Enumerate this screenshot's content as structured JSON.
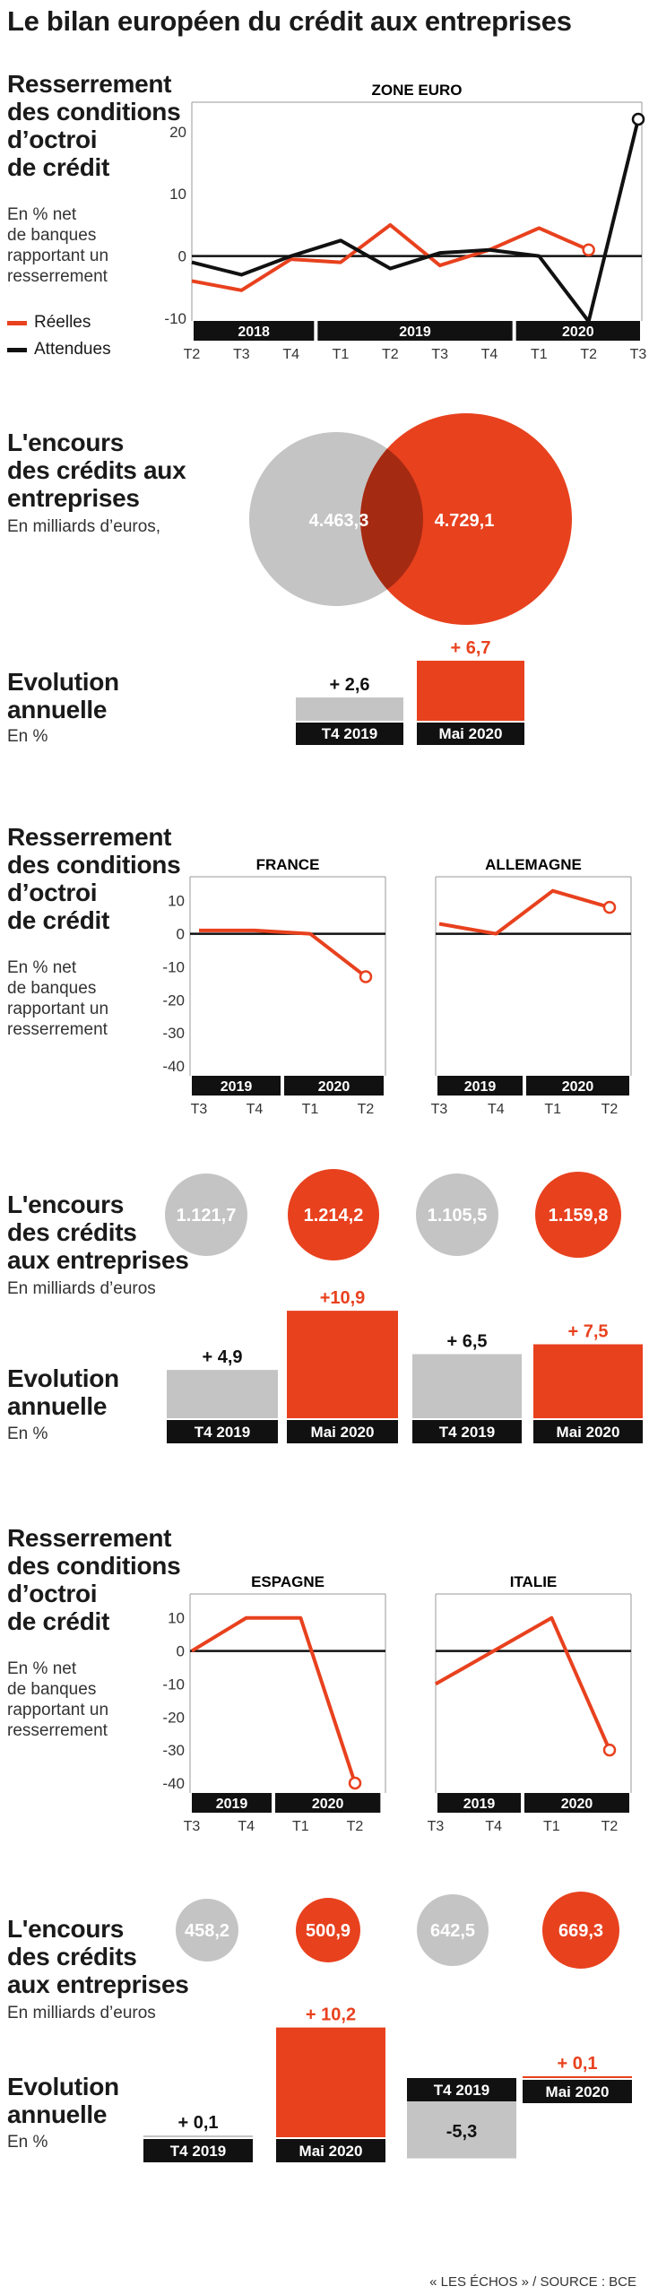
{
  "title": "Le bilan européen du crédit aux entreprises",
  "section_resserrement": {
    "heading": [
      "Resserrement",
      "des conditions",
      "d’octroi",
      "de crédit"
    ],
    "sub_zone": [
      "En % net",
      "de banques",
      "rapportant un",
      "resserrement"
    ],
    "sub_country": [
      "En % net",
      "de banques",
      "rapportant un",
      "resserrement"
    ]
  },
  "section_encours": {
    "heading1": [
      "L'encours",
      "des crédits aux",
      "entreprises"
    ],
    "sub1": "En milliards d’euros,",
    "heading2": [
      "L'encours",
      "des crédits",
      "aux entreprises"
    ],
    "sub2": "En milliards d’euros"
  },
  "section_evolution": {
    "heading": [
      "Evolution",
      "annuelle"
    ],
    "sub": "En %"
  },
  "colors": {
    "real": "#e8411e",
    "expected": "#111111",
    "grey": "#c4c4c4",
    "zero_line": "#111111"
  },
  "legend": {
    "real": "Réelles",
    "expected": "Attendues"
  },
  "chart_data": [
    {
      "type": "line",
      "title": "ZONE EURO",
      "years": [
        {
          "label": "2018",
          "quarters": [
            "T2",
            "T3",
            "T4"
          ]
        },
        {
          "label": "2019",
          "quarters": [
            "T1",
            "T2",
            "T3",
            "T4"
          ]
        },
        {
          "label": "2020",
          "quarters": [
            "T1",
            "T2",
            "T3"
          ]
        }
      ],
      "x": [
        "2018 T2",
        "2018 T3",
        "2018 T4",
        "2019 T1",
        "2019 T2",
        "2019 T3",
        "2019 T4",
        "2020 T1",
        "2020 T2",
        "2020 T3"
      ],
      "yticks": [
        -10,
        0,
        10,
        20
      ],
      "ylim": [
        -11,
        23
      ],
      "series": [
        {
          "name": "Réelles",
          "values": [
            -4,
            -5.5,
            -0.5,
            -1,
            5,
            -1.5,
            1,
            4.5,
            1,
            null
          ]
        },
        {
          "name": "Attendues",
          "values": [
            -1,
            -3,
            0,
            2.5,
            -2,
            0.5,
            1,
            0,
            -10.5,
            22
          ]
        }
      ]
    },
    {
      "type": "bar",
      "categories": [
        "T4 2019",
        "Mai 2020"
      ],
      "values": [
        2.6,
        6.7
      ],
      "labels": [
        "+ 2,6",
        "+ 6,7"
      ]
    },
    {
      "type": "line",
      "title": "FRANCE",
      "years": [
        {
          "label": "2019",
          "quarters": [
            "T3",
            "T4"
          ]
        },
        {
          "label": "2020",
          "quarters": [
            "T1",
            "T2"
          ]
        }
      ],
      "x": [
        "2019 T3",
        "2019 T4",
        "2020 T1",
        "2020 T2"
      ],
      "yticks": [
        10,
        0,
        -10,
        -20,
        -30,
        -40
      ],
      "ylim": [
        -43,
        14
      ],
      "series": [
        {
          "values": [
            1,
            1,
            0,
            -13
          ]
        }
      ]
    },
    {
      "type": "line",
      "title": "ALLEMAGNE",
      "years": [
        {
          "label": "2019",
          "quarters": [
            "T3",
            "T4"
          ]
        },
        {
          "label": "2020",
          "quarters": [
            "T1",
            "T2"
          ]
        }
      ],
      "x": [
        "2019 T3",
        "2019 T4",
        "2020 T1",
        "2020 T2"
      ],
      "ylim": [
        -43,
        14
      ],
      "series": [
        {
          "values": [
            3,
            0,
            13,
            8
          ]
        }
      ]
    },
    {
      "type": "bar",
      "categories": [
        "T4 2019",
        "Mai 2020"
      ],
      "values": [
        4.9,
        10.9
      ],
      "labels": [
        "+ 4,9",
        "+10,9"
      ]
    },
    {
      "type": "bar",
      "categories": [
        "T4 2019",
        "Mai 2020"
      ],
      "values": [
        6.5,
        7.5
      ],
      "labels": [
        "+ 6,5",
        "+ 7,5"
      ]
    },
    {
      "type": "line",
      "title": "ESPAGNE",
      "years": [
        {
          "label": "2019",
          "quarters": [
            "T3",
            "T4"
          ]
        },
        {
          "label": "2020",
          "quarters": [
            "T1",
            "T2"
          ]
        }
      ],
      "x": [
        "2019 T3",
        "2019 T4",
        "2020 T1",
        "2020 T2"
      ],
      "yticks": [
        10,
        0,
        -10,
        -20,
        -30,
        -40
      ],
      "ylim": [
        -43,
        14
      ],
      "series": [
        {
          "values": [
            0,
            10,
            10,
            -40
          ]
        }
      ]
    },
    {
      "type": "line",
      "title": "ITALIE",
      "years": [
        {
          "label": "2019",
          "quarters": [
            "T3",
            "T4"
          ]
        },
        {
          "label": "2020",
          "quarters": [
            "T1",
            "T2"
          ]
        }
      ],
      "x": [
        "2019 T3",
        "2019 T4",
        "2020 T1",
        "2020 T2"
      ],
      "ylim": [
        -43,
        14
      ],
      "series": [
        {
          "values": [
            -10,
            0,
            10,
            -30
          ]
        }
      ]
    },
    {
      "type": "bar",
      "categories": [
        "T4 2019",
        "Mai 2020"
      ],
      "values": [
        0.1,
        10.2
      ],
      "labels": [
        "+ 0,1",
        "+ 10,2"
      ]
    },
    {
      "type": "bar",
      "categories": [
        "T4 2019",
        "Mai 2020"
      ],
      "values": [
        -5.3,
        0.1
      ],
      "labels": [
        "-5,3",
        "+ 0,1"
      ]
    }
  ],
  "encours": {
    "zone": {
      "t4_2019": "4.463,3",
      "mai_2020": "4.729,1"
    },
    "france": {
      "t4_2019": "1.121,7",
      "mai_2020": "1.214,2"
    },
    "allemagne": {
      "t4_2019": "1.105,5",
      "mai_2020": "1.159,8"
    },
    "espagne": {
      "t4_2019": "458,2",
      "mai_2020": "500,9"
    },
    "italie": {
      "t4_2019": "642,5",
      "mai_2020": "669,3"
    }
  },
  "footer": "« LES ÉCHOS » / SOURCE : BCE"
}
